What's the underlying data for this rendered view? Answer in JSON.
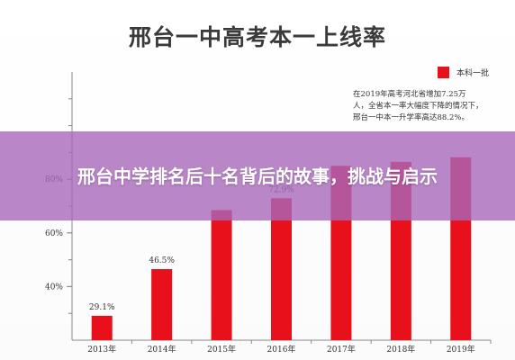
{
  "chart_data": {
    "type": "bar",
    "title": "邢台一中高考本一上线率",
    "categories": [
      "2013年",
      "2014年",
      "2015年",
      "2016年",
      "2017年",
      "2018年",
      "2019年"
    ],
    "series": [
      {
        "name": "本科一批",
        "values": [
          29.1,
          46.5,
          68.5,
          72.9,
          85.0,
          86.5,
          88.2
        ]
      }
    ],
    "data_labels": [
      "29.1%",
      "46.5%",
      "",
      "72.9%",
      "",
      "",
      ""
    ],
    "y_ticks": [
      {
        "value": 40,
        "label": "40%"
      },
      {
        "value": 60,
        "label": "60%"
      },
      {
        "value": 80,
        "label": "80%"
      }
    ],
    "ylim": [
      20,
      120
    ],
    "legend_position": "top-right",
    "note_lines": [
      "在2019年高考河北省增加7.25万",
      "人，全省本一率大幅度下降的情况下，",
      "邢台一中本一升学率高达88.2%。"
    ],
    "colors": {
      "bar": "#e8101a",
      "axis": "#888888"
    }
  },
  "overlay": {
    "headline": "邢台中学排名后十名背后的故事，挑战与启示",
    "color": "#a868ba"
  }
}
